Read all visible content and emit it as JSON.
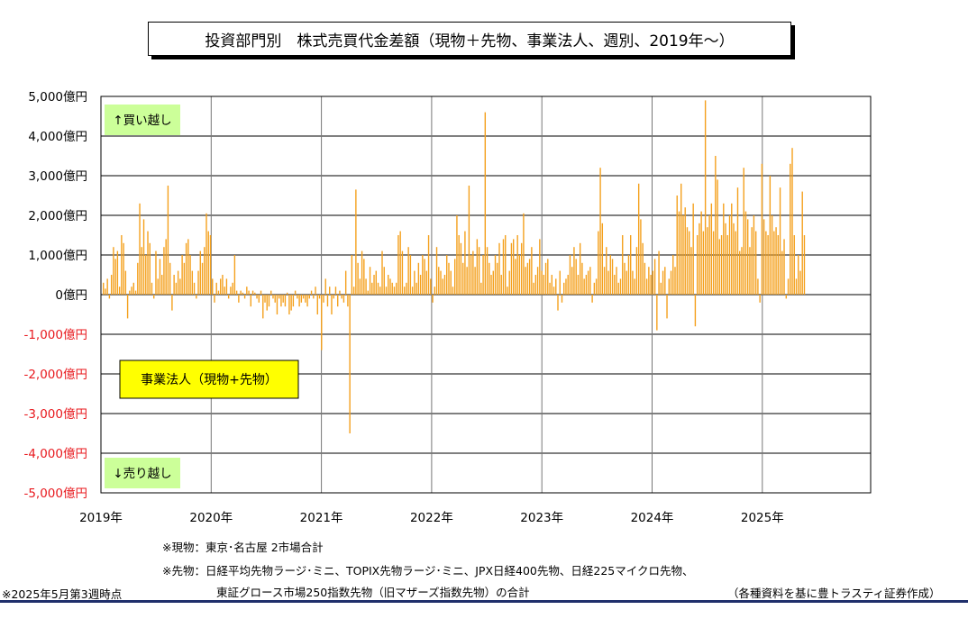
{
  "title": "投資部門別　株式売買代金差額（現物＋先物、事業法人、週別、2019年～）",
  "annotations": {
    "buy_label": "↑買い越し",
    "sell_label": "↓売り越し",
    "series_label": "事業法人（現物+先物）"
  },
  "notes": {
    "cash": "※現物：東京･名古屋 2市場合計",
    "futures_line1": "※先物：日経平均先物ラージ･ミニ、TOPIX先物ラージ･ミニ、JPX日経400先物、日経225マイクロ先物、",
    "futures_line2": "東証グロース市場250指数先物（旧マザーズ指数先物）の合計",
    "as_of": "※2025年5月第3週時点",
    "source": "（各種資料を基に豊トラスティ証券作成）"
  },
  "colors": {
    "bar": "#f4a01c",
    "positive_tick": "#000000",
    "negative_tick": "#e8191e",
    "label_box": "#ccff99",
    "series_box": "#ffff00",
    "footer_line": "#1f2f6b"
  },
  "chart_data": {
    "type": "bar",
    "ylim": [
      -5000,
      5000
    ],
    "y_ticks": [
      5000,
      4000,
      3000,
      2000,
      1000,
      0,
      -1000,
      -2000,
      -3000,
      -4000,
      -5000
    ],
    "y_tick_labels": [
      "5,000億円",
      "4,000億円",
      "3,000億円",
      "2,000億円",
      "1,000億円",
      "0億円",
      "-1,000億円",
      "-2,000億円",
      "-3,000億円",
      "-4,000億円",
      "-5,000億円"
    ],
    "x_ticks": [
      "2019年",
      "2020年",
      "2021年",
      "2022年",
      "2023年",
      "2024年",
      "2025年"
    ],
    "grid": true,
    "series": [
      {
        "name": "事業法人（現物+先物）",
        "values": [
          300,
          150,
          400,
          -100,
          500,
          1200,
          900,
          1100,
          200,
          1500,
          1300,
          600,
          -600,
          100,
          200,
          300,
          100,
          800,
          2300,
          1200,
          1900,
          1000,
          1600,
          1300,
          300,
          -100,
          1100,
          400,
          900,
          500,
          1200,
          1400,
          2750,
          800,
          -400,
          500,
          300,
          600,
          400,
          1000,
          800,
          1300,
          1400,
          1000,
          600,
          300,
          -100,
          600,
          1100,
          800,
          1200,
          2050,
          1600,
          1500,
          400,
          -200,
          300,
          100,
          400,
          500,
          200,
          400,
          -100,
          200,
          300,
          1000,
          100,
          -200,
          100,
          50,
          -100,
          200,
          100,
          -300,
          100,
          50,
          -100,
          -200,
          100,
          -600,
          -200,
          -400,
          -300,
          100,
          -100,
          -200,
          -500,
          -100,
          -300,
          -200,
          -300,
          50,
          -500,
          -400,
          -300,
          100,
          -100,
          -300,
          -200,
          -100,
          -200,
          -300,
          -100,
          100,
          -100,
          200,
          -500,
          -100,
          -1400,
          -200,
          400,
          -300,
          200,
          -500,
          -100,
          200,
          -300,
          100,
          -100,
          -200,
          600,
          -300,
          -3500,
          1000,
          200,
          2650,
          800,
          400,
          1100,
          900,
          400,
          100,
          700,
          300,
          500,
          600,
          300,
          200,
          1100,
          700,
          200,
          500,
          400,
          300,
          200,
          300,
          1500,
          1600,
          1100,
          200,
          300,
          1200,
          1000,
          200,
          600,
          300,
          800,
          500,
          1000,
          900,
          600,
          1500,
          400,
          -200,
          200,
          1200,
          700,
          600,
          400,
          500,
          1000,
          800,
          600,
          200,
          900,
          2000,
          1500,
          1300,
          800,
          1600,
          700,
          2750,
          1000,
          1100,
          700,
          1400,
          1200,
          300,
          1000,
          4600,
          1200,
          800,
          500,
          600,
          1000,
          800,
          1300,
          500,
          1400,
          1500,
          200,
          600,
          1300,
          1400,
          900,
          1500,
          1000,
          1300,
          2050,
          700,
          800,
          900,
          1200,
          300,
          500,
          700,
          1400,
          600,
          500,
          800,
          900,
          300,
          500,
          200,
          400,
          -400,
          600,
          -200,
          300,
          400,
          500,
          1000,
          700,
          1200,
          900,
          500,
          1300,
          800,
          400,
          500,
          600,
          700,
          -200,
          300,
          400,
          1600,
          3200,
          1800,
          700,
          1200,
          600,
          1000,
          900,
          500,
          700,
          300,
          400,
          1500,
          800,
          600,
          1000,
          1500,
          600,
          400,
          1200,
          2800,
          1900,
          1300,
          800,
          400,
          700,
          500,
          600,
          900,
          -900,
          1100,
          300,
          600,
          700,
          -600,
          400,
          600,
          1000,
          700,
          2500,
          2100,
          2800,
          2000,
          2200,
          1700,
          1600,
          1200,
          2300,
          -800,
          1500,
          1800,
          2100,
          1600,
          4900,
          1700,
          2000,
          2300,
          1600,
          3500,
          2900,
          1400,
          1500,
          2300,
          1800,
          1500,
          2000,
          2300,
          1800,
          1600,
          2700,
          1100,
          1200,
          3200,
          2100,
          1900,
          1200,
          1700,
          2000,
          1600,
          400,
          -200,
          3300,
          1900,
          1600,
          1500,
          3000,
          2000,
          1600,
          1700,
          1500,
          2700,
          1100,
          1400,
          -100,
          400,
          3300,
          3700,
          1500,
          400,
          1000,
          600,
          2600,
          1500
        ]
      }
    ]
  }
}
